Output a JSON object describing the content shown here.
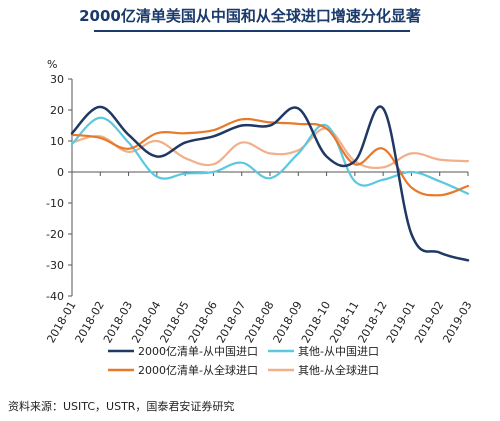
{
  "title": "2000亿清单美国从中国和从全球进口增速分化显著",
  "source": "资料来源：USITC，USTR，国泰君安证券研究",
  "chart_data": {
    "type": "line",
    "ylabel": "%",
    "xlabel": "",
    "ylim": [
      -40,
      30
    ],
    "yticks": [
      30,
      20,
      10,
      0,
      -10,
      -20,
      -30,
      -40
    ],
    "grid": false,
    "categories": [
      "2018-01",
      "2018-02",
      "2018-03",
      "2018-04",
      "2018-05",
      "2018-06",
      "2018-07",
      "2018-08",
      "2018-09",
      "2018-10",
      "2018-11",
      "2018-12",
      "2019-01",
      "2019-02",
      "2019-03"
    ],
    "legend_position": "bottom",
    "series": [
      {
        "name": "2000亿清单-从中国进口",
        "color": "#1f3864",
        "values": [
          12.5,
          21,
          12,
          5,
          9.5,
          11.5,
          15,
          15,
          20.5,
          5,
          3.5,
          20.5,
          -20,
          -26,
          -28.5
        ]
      },
      {
        "name": "其他-从中国进口",
        "color": "#5bc8e0",
        "values": [
          9,
          17.5,
          9.5,
          -1.5,
          -0.5,
          0,
          3,
          -2,
          6,
          15,
          -3,
          -2.5,
          0,
          -3,
          -7
        ]
      },
      {
        "name": "2000亿清单-从全球进口",
        "color": "#e8792a",
        "values": [
          12,
          11,
          7.5,
          12.5,
          12.5,
          13.5,
          17,
          16,
          15.5,
          14,
          2.5,
          7.5,
          -5,
          -7.5,
          -4.5
        ]
      },
      {
        "name": "其他-从全球进口",
        "color": "#f2b08a",
        "values": [
          9.5,
          11.5,
          6.5,
          10,
          4.5,
          2.5,
          9.5,
          6,
          7,
          14,
          3.5,
          1.5,
          6,
          4,
          3.5
        ]
      }
    ]
  }
}
